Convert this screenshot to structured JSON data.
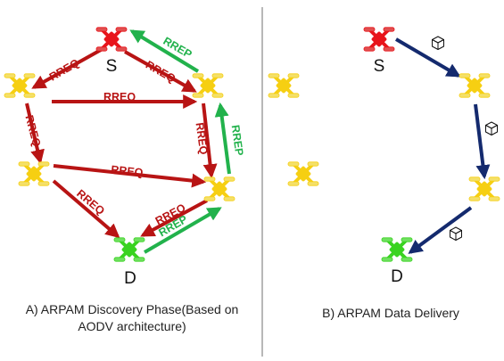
{
  "panel_a": {
    "caption_line1": "A) ARPAM Discovery Phase(Based on",
    "caption_line2": "AODV architecture)",
    "source_label": "S",
    "dest_label": "D",
    "rreq_label": "RREQ",
    "rrep_label": "RREP"
  },
  "panel_b": {
    "caption": "B) ARPAM Data Delivery",
    "source_label": "S",
    "dest_label": "D"
  },
  "colors": {
    "source_drone": "#e8141b",
    "dest_drone": "#39d320",
    "relay_drone": "#f6cf12",
    "rreq_arrow": "#b81414",
    "rrep_arrow": "#22b24c",
    "data_arrow": "#142a6e",
    "divider": "#888888",
    "rotor_source": "#e05050",
    "rotor_dest": "#70e060",
    "rotor_relay": "#f4e06a"
  },
  "icons": {
    "drone": "quadcopter-icon",
    "packet": "cube-icon"
  }
}
